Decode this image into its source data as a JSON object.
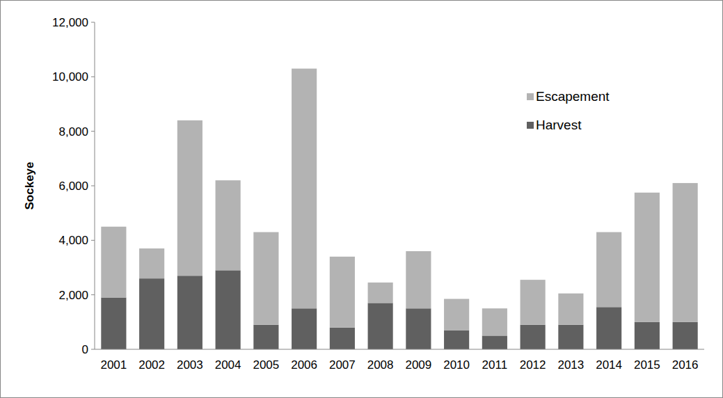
{
  "chart_data": {
    "type": "bar",
    "stacked": true,
    "grid": false,
    "legend": "top-right",
    "y_label": "Sockeye",
    "categories": [
      "2001",
      "2002",
      "2003",
      "2004",
      "2005",
      "2006",
      "2007",
      "2008",
      "2009",
      "2010",
      "2011",
      "2012",
      "2013",
      "2014",
      "2015",
      "2016"
    ],
    "series": [
      {
        "name": "Harvest",
        "color": "#606060",
        "values": [
          1900,
          2600,
          2700,
          2900,
          900,
          1500,
          800,
          1700,
          1500,
          700,
          500,
          900,
          900,
          1550,
          1000,
          1000
        ]
      },
      {
        "name": "Escapement",
        "color": "#b3b3b3",
        "values": [
          2600,
          1100,
          5700,
          3300,
          3400,
          8800,
          2600,
          750,
          2100,
          1150,
          1000,
          1650,
          1150,
          2750,
          4750,
          5100
        ]
      }
    ],
    "ylim": [
      0,
      12000
    ],
    "yticks": [
      0,
      {
        "value": 2000,
        "label": "2,000"
      },
      {
        "value": 4000,
        "label": "4,000"
      },
      {
        "value": 6000,
        "label": "6,000"
      },
      {
        "value": 8000,
        "label": "8,000"
      },
      {
        "value": 10000,
        "label": "10,000"
      },
      {
        "value": 12000,
        "label": "12,000"
      }
    ]
  }
}
